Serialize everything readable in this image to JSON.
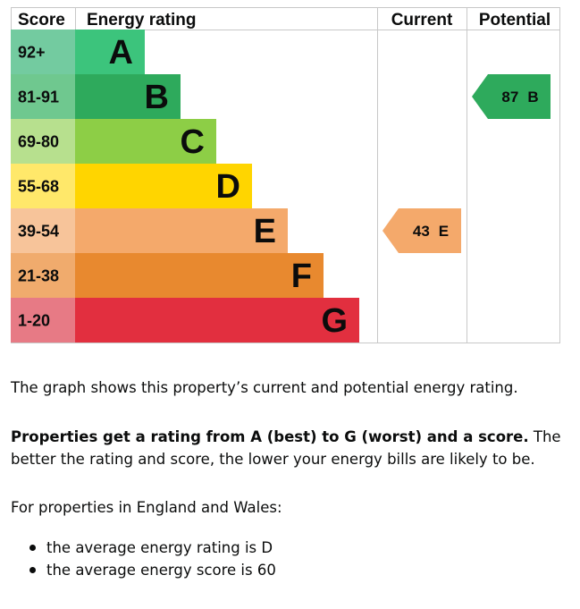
{
  "header": {
    "score": "Score",
    "energy_rating": "Energy rating",
    "current": "Current",
    "potential": "Potential"
  },
  "chart_data": {
    "type": "bar",
    "bands": [
      {
        "range": "92+",
        "letter": "A",
        "color": "#3cc47c",
        "label_bg": "#73cba0"
      },
      {
        "range": "81-91",
        "letter": "B",
        "color": "#2eaa5c",
        "label_bg": "#6fc88f"
      },
      {
        "range": "69-80",
        "letter": "C",
        "color": "#8dce46",
        "label_bg": "#b7e08e"
      },
      {
        "range": "55-68",
        "letter": "D",
        "color": "#ffd500",
        "label_bg": "#ffe86a"
      },
      {
        "range": "39-54",
        "letter": "E",
        "color": "#f4a96b",
        "label_bg": "#f7c49a"
      },
      {
        "range": "21-38",
        "letter": "F",
        "color": "#e8892f",
        "label_bg": "#f0ab6d"
      },
      {
        "range": "1-20",
        "letter": "G",
        "color": "#e22f3f",
        "label_bg": "#e77a85"
      }
    ],
    "current": {
      "score": "43",
      "rating": "E",
      "band_index": 4,
      "color": "#f4a96b"
    },
    "potential": {
      "score": "87",
      "rating": "B",
      "band_index": 1,
      "color": "#2eaa5c"
    }
  },
  "description": {
    "line1": "The graph shows this property’s current and potential energy rating.",
    "bold": "Properties get a rating from A (best) to G (worst) and a score.",
    "rest": " The better the rating and score, the lower your energy bills are likely to be.",
    "region": "For properties in England and Wales:",
    "bullets": [
      "the average energy rating is D",
      "the average energy score is 60"
    ]
  }
}
